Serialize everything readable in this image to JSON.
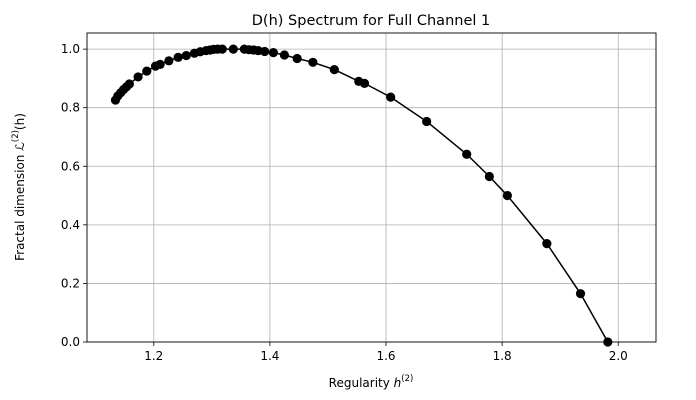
{
  "chart_data": {
    "type": "line",
    "title": "D(h) Spectrum for Full Channel 1",
    "xlabel": {
      "prefix": "Regularity ",
      "symbol": "h",
      "superscript": "(2)"
    },
    "ylabel": {
      "prefix": "Fractal dimension ",
      "symbol": "ℒ",
      "superscript": "(2)",
      "suffix": "(h)"
    },
    "xlim": [
      1.085,
      2.065
    ],
    "ylim": [
      0.0,
      1.055
    ],
    "xticks": [
      1.2,
      1.4,
      1.6,
      1.8,
      2.0
    ],
    "xtick_labels": [
      "1.2",
      "1.4",
      "1.6",
      "1.8",
      "2.0"
    ],
    "yticks": [
      0.0,
      0.2,
      0.4,
      0.6,
      0.8,
      1.0
    ],
    "ytick_labels": [
      "0.0",
      "0.2",
      "0.4",
      "0.6",
      "0.8",
      "1.0"
    ],
    "grid": true,
    "color": "#000000",
    "series": [
      {
        "marker": "circle",
        "x": [
          1.134,
          1.138,
          1.143,
          1.148,
          1.153,
          1.158,
          1.173,
          1.188,
          1.203,
          1.211,
          1.226,
          1.242,
          1.256,
          1.27,
          1.28,
          1.29,
          1.297,
          1.303,
          1.31,
          1.318,
          1.337,
          1.356,
          1.364,
          1.372,
          1.38,
          1.391,
          1.406,
          1.425,
          1.447,
          1.474,
          1.511,
          1.553,
          1.563,
          1.608,
          1.67,
          1.739,
          1.778,
          1.809,
          1.877,
          1.935,
          1.982
        ],
        "y": [
          0.826,
          0.84,
          0.851,
          0.862,
          0.871,
          0.881,
          0.905,
          0.925,
          0.942,
          0.948,
          0.96,
          0.972,
          0.978,
          0.986,
          0.991,
          0.995,
          0.997,
          0.999,
          1.0,
          1.0,
          1.0,
          1.0,
          0.998,
          0.997,
          0.995,
          0.992,
          0.988,
          0.98,
          0.968,
          0.955,
          0.93,
          0.89,
          0.883,
          0.836,
          0.753,
          0.641,
          0.565,
          0.5,
          0.336,
          0.165,
          0.0
        ]
      }
    ]
  }
}
